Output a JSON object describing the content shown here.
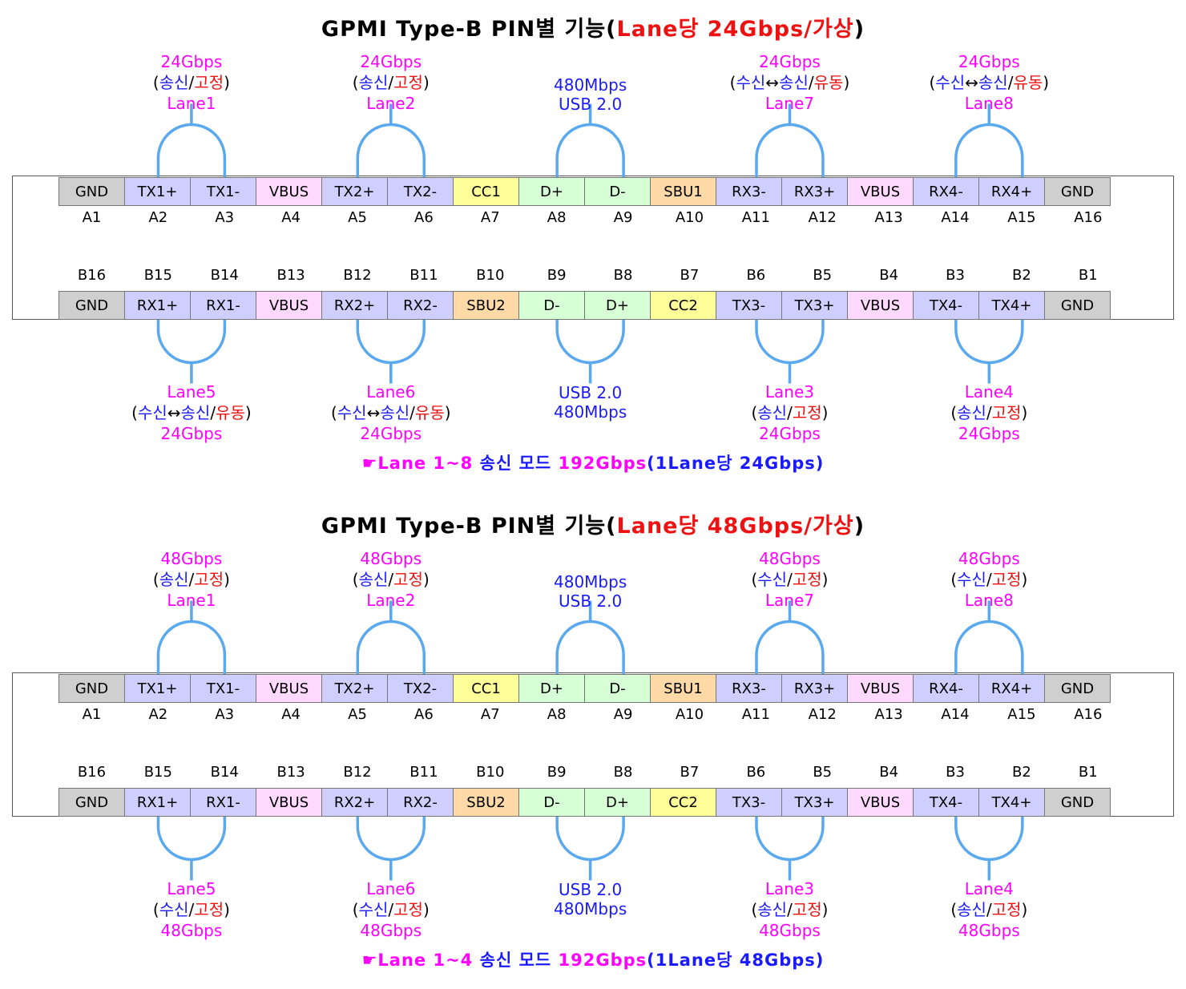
{
  "diagrams": [
    {
      "title": {
        "prefix": "GPMI Type-B PIN별 기능(",
        "red": "Lane당 24Gbps/가상",
        "suffix": ")"
      },
      "top_pins": [
        {
          "label": "GND",
          "type": "gnd"
        },
        {
          "label": "TX1+",
          "type": "diff"
        },
        {
          "label": "TX1-",
          "type": "diff"
        },
        {
          "label": "VBUS",
          "type": "vbus"
        },
        {
          "label": "TX2+",
          "type": "diff"
        },
        {
          "label": "TX2-",
          "type": "diff"
        },
        {
          "label": "CC1",
          "type": "cc"
        },
        {
          "label": "D+",
          "type": "usb"
        },
        {
          "label": "D-",
          "type": "usb"
        },
        {
          "label": "SBU1",
          "type": "sbu"
        },
        {
          "label": "RX3-",
          "type": "diff"
        },
        {
          "label": "RX3+",
          "type": "diff"
        },
        {
          "label": "VBUS",
          "type": "vbus"
        },
        {
          "label": "RX4-",
          "type": "diff"
        },
        {
          "label": "RX4+",
          "type": "diff"
        },
        {
          "label": "GND",
          "type": "gnd"
        }
      ],
      "top_ids": [
        "A1",
        "A2",
        "A3",
        "A4",
        "A5",
        "A6",
        "A7",
        "A8",
        "A9",
        "A10",
        "A11",
        "A12",
        "A13",
        "A14",
        "A15",
        "A16"
      ],
      "bottom_ids": [
        "B16",
        "B15",
        "B14",
        "B13",
        "B12",
        "B11",
        "B10",
        "B9",
        "B8",
        "B7",
        "B6",
        "B5",
        "B4",
        "B3",
        "B2",
        "B1"
      ],
      "bottom_pins": [
        {
          "label": "GND",
          "type": "gnd"
        },
        {
          "label": "RX1+",
          "type": "diff"
        },
        {
          "label": "RX1-",
          "type": "diff"
        },
        {
          "label": "VBUS",
          "type": "vbus"
        },
        {
          "label": "RX2+",
          "type": "diff"
        },
        {
          "label": "RX2-",
          "type": "diff"
        },
        {
          "label": "SBU2",
          "type": "sbu"
        },
        {
          "label": "D-",
          "type": "usb"
        },
        {
          "label": "D+",
          "type": "usb"
        },
        {
          "label": "CC2",
          "type": "cc"
        },
        {
          "label": "TX3-",
          "type": "diff"
        },
        {
          "label": "TX3+",
          "type": "diff"
        },
        {
          "label": "VBUS",
          "type": "vbus"
        },
        {
          "label": "TX4-",
          "type": "diff"
        },
        {
          "label": "TX4+",
          "type": "diff"
        },
        {
          "label": "GND",
          "type": "gnd"
        }
      ],
      "top_lanes": [
        {
          "speed": "24Gbps",
          "mode1": "송신",
          "mode2": "",
          "state": "고정",
          "lane": "Lane1"
        },
        {
          "speed": "24Gbps",
          "mode1": "송신",
          "mode2": "",
          "state": "고정",
          "lane": "Lane2"
        },
        {
          "speed": "24Gbps",
          "mode1": "수신",
          "mode2": "송신",
          "state": "유동",
          "lane": "Lane7"
        },
        {
          "speed": "24Gbps",
          "mode1": "수신",
          "mode2": "송신",
          "state": "유동",
          "lane": "Lane8"
        }
      ],
      "bottom_lanes": [
        {
          "speed": "24Gbps",
          "mode1": "수신",
          "mode2": "송신",
          "state": "유동",
          "lane": "Lane5"
        },
        {
          "speed": "24Gbps",
          "mode1": "수신",
          "mode2": "송신",
          "state": "유동",
          "lane": "Lane6"
        },
        {
          "speed": "24Gbps",
          "mode1": "송신",
          "mode2": "",
          "state": "고정",
          "lane": "Lane3"
        },
        {
          "speed": "24Gbps",
          "mode1": "송신",
          "mode2": "",
          "state": "고정",
          "lane": "Lane4"
        }
      ],
      "usb_top": {
        "line1": "480Mbps",
        "line2": "USB 2.0"
      },
      "usb_bottom": {
        "line1": "USB 2.0",
        "line2": "480Mbps"
      },
      "footer": {
        "icon": "☛",
        "p1": "Lane 1~8",
        "p2": "송신 모드",
        "p3": "192Gbps",
        "p4": "(1Lane당 24Gbps)"
      }
    },
    {
      "title": {
        "prefix": "GPMI Type-B PIN별 기능(",
        "red": "Lane당 48Gbps/가상",
        "suffix": ")"
      },
      "top_pins": [
        {
          "label": "GND",
          "type": "gnd"
        },
        {
          "label": "TX1+",
          "type": "diff"
        },
        {
          "label": "TX1-",
          "type": "diff"
        },
        {
          "label": "VBUS",
          "type": "vbus"
        },
        {
          "label": "TX2+",
          "type": "diff"
        },
        {
          "label": "TX2-",
          "type": "diff"
        },
        {
          "label": "CC1",
          "type": "cc"
        },
        {
          "label": "D+",
          "type": "usb"
        },
        {
          "label": "D-",
          "type": "usb"
        },
        {
          "label": "SBU1",
          "type": "sbu"
        },
        {
          "label": "RX3-",
          "type": "diff"
        },
        {
          "label": "RX3+",
          "type": "diff"
        },
        {
          "label": "VBUS",
          "type": "vbus"
        },
        {
          "label": "RX4-",
          "type": "diff"
        },
        {
          "label": "RX4+",
          "type": "diff"
        },
        {
          "label": "GND",
          "type": "gnd"
        }
      ],
      "top_ids": [
        "A1",
        "A2",
        "A3",
        "A4",
        "A5",
        "A6",
        "A7",
        "A8",
        "A9",
        "A10",
        "A11",
        "A12",
        "A13",
        "A14",
        "A15",
        "A16"
      ],
      "bottom_ids": [
        "B16",
        "B15",
        "B14",
        "B13",
        "B12",
        "B11",
        "B10",
        "B9",
        "B8",
        "B7",
        "B6",
        "B5",
        "B4",
        "B3",
        "B2",
        "B1"
      ],
      "bottom_pins": [
        {
          "label": "GND",
          "type": "gnd"
        },
        {
          "label": "RX1+",
          "type": "diff"
        },
        {
          "label": "RX1-",
          "type": "diff"
        },
        {
          "label": "VBUS",
          "type": "vbus"
        },
        {
          "label": "RX2+",
          "type": "diff"
        },
        {
          "label": "RX2-",
          "type": "diff"
        },
        {
          "label": "SBU2",
          "type": "sbu"
        },
        {
          "label": "D-",
          "type": "usb"
        },
        {
          "label": "D+",
          "type": "usb"
        },
        {
          "label": "CC2",
          "type": "cc"
        },
        {
          "label": "TX3-",
          "type": "diff"
        },
        {
          "label": "TX3+",
          "type": "diff"
        },
        {
          "label": "VBUS",
          "type": "vbus"
        },
        {
          "label": "TX4-",
          "type": "diff"
        },
        {
          "label": "TX4+",
          "type": "diff"
        },
        {
          "label": "GND",
          "type": "gnd"
        }
      ],
      "top_lanes": [
        {
          "speed": "48Gbps",
          "mode1": "송신",
          "mode2": "",
          "state": "고정",
          "lane": "Lane1"
        },
        {
          "speed": "48Gbps",
          "mode1": "송신",
          "mode2": "",
          "state": "고정",
          "lane": "Lane2"
        },
        {
          "speed": "48Gbps",
          "mode1": "수신",
          "mode2": "",
          "state": "고정",
          "lane": "Lane7"
        },
        {
          "speed": "48Gbps",
          "mode1": "수신",
          "mode2": "",
          "state": "고정",
          "lane": "Lane8"
        }
      ],
      "bottom_lanes": [
        {
          "speed": "48Gbps",
          "mode1": "수신",
          "mode2": "",
          "state": "고정",
          "lane": "Lane5"
        },
        {
          "speed": "48Gbps",
          "mode1": "수신",
          "mode2": "",
          "state": "고정",
          "lane": "Lane6"
        },
        {
          "speed": "48Gbps",
          "mode1": "송신",
          "mode2": "",
          "state": "고정",
          "lane": "Lane3"
        },
        {
          "speed": "48Gbps",
          "mode1": "송신",
          "mode2": "",
          "state": "고정",
          "lane": "Lane4"
        }
      ],
      "usb_top": {
        "line1": "480Mbps",
        "line2": "USB 2.0"
      },
      "usb_bottom": {
        "line1": "USB 2.0",
        "line2": "480Mbps"
      },
      "footer": {
        "icon": "☛",
        "p1": "Lane 1~4",
        "p2": "송신 모드",
        "p3": "192Gbps",
        "p4": "(1Lane당 48Gbps)"
      }
    }
  ],
  "colors": {
    "lane_arc": "#5aa9ee",
    "magenta": "#ff00ff",
    "blue": "#1a1aff",
    "red": "#ee1111"
  }
}
